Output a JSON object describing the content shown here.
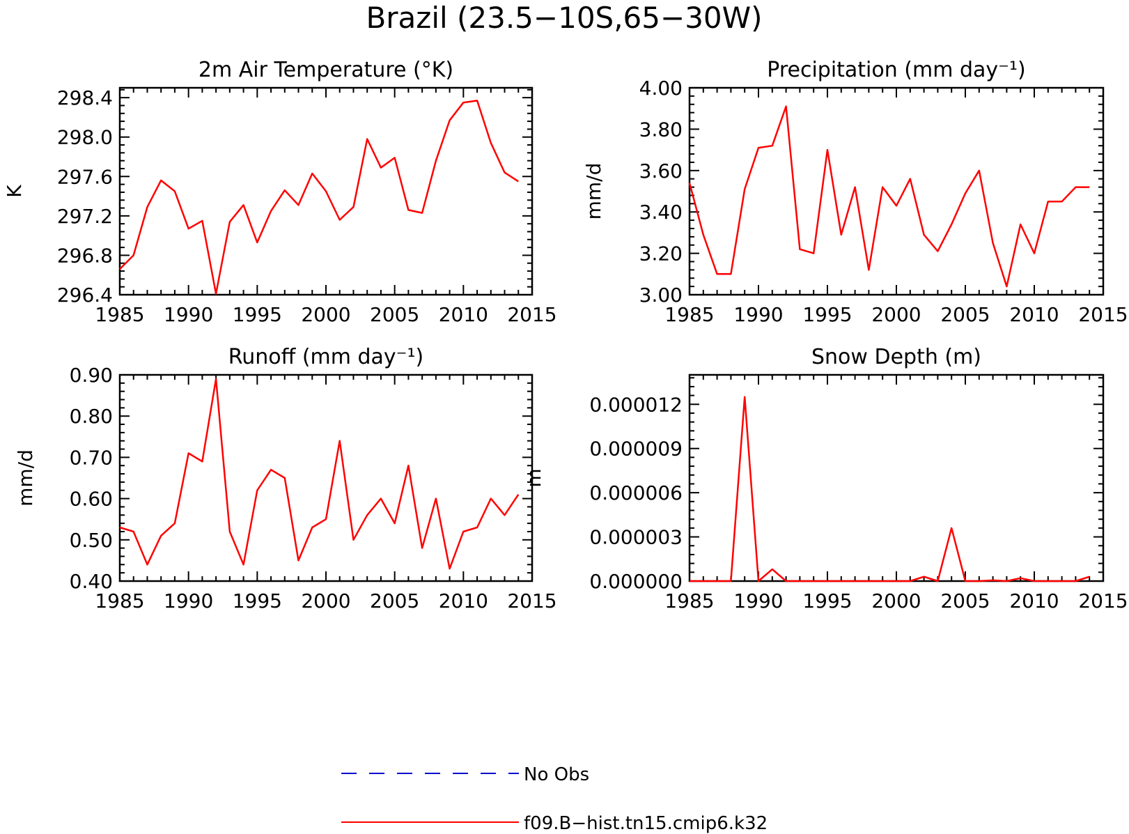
{
  "figure": {
    "title": "Brazil (23.5−10S,65−30W)"
  },
  "legend": {
    "entries": [
      {
        "label": "No Obs",
        "color": "#0000cc",
        "style": "dashed"
      },
      {
        "label": "f09.B−hist.tn15.cmip6.k32",
        "color": "#ff0000",
        "style": "solid"
      }
    ]
  },
  "chart_data": [
    {
      "type": "line",
      "title": "2m Air Temperature (°K)",
      "xlabel": "",
      "ylabel": "K",
      "xlim": [
        1985,
        2015
      ],
      "ylim": [
        296.4,
        298.5
      ],
      "xticks": [
        1985,
        1990,
        1995,
        2000,
        2005,
        2010,
        2015
      ],
      "yticks": [
        296.4,
        296.8,
        297.2,
        297.6,
        298.0,
        298.4
      ],
      "ytick_labels": [
        "296.4",
        "296.8",
        "297.2",
        "297.6",
        "298.0",
        "298.4"
      ],
      "x": [
        1985,
        1986,
        1987,
        1988,
        1989,
        1990,
        1991,
        1992,
        1993,
        1994,
        1995,
        1996,
        1997,
        1998,
        1999,
        2000,
        2001,
        2002,
        2003,
        2004,
        2005,
        2006,
        2007,
        2008,
        2009,
        2010,
        2011,
        2012,
        2013,
        2014
      ],
      "series": [
        {
          "color": "#ff0000",
          "values": [
            296.66,
            296.8,
            297.29,
            297.56,
            297.45,
            297.07,
            297.15,
            296.41,
            297.14,
            297.31,
            296.93,
            297.25,
            297.46,
            297.31,
            297.63,
            297.45,
            297.16,
            297.29,
            297.98,
            297.69,
            297.79,
            297.26,
            297.23,
            297.76,
            298.17,
            298.35,
            298.37,
            297.94,
            297.64,
            297.55
          ]
        }
      ]
    },
    {
      "type": "line",
      "title": "Precipitation (mm day⁻¹)",
      "xlabel": "",
      "ylabel": "mm/d",
      "xlim": [
        1985,
        2015
      ],
      "ylim": [
        3.0,
        4.0
      ],
      "xticks": [
        1985,
        1990,
        1995,
        2000,
        2005,
        2010,
        2015
      ],
      "yticks": [
        3.0,
        3.2,
        3.4,
        3.6,
        3.8,
        4.0
      ],
      "ytick_labels": [
        "3.00",
        "3.20",
        "3.40",
        "3.60",
        "3.80",
        "4.00"
      ],
      "x": [
        1985,
        1986,
        1987,
        1988,
        1989,
        1990,
        1991,
        1992,
        1993,
        1994,
        1995,
        1996,
        1997,
        1998,
        1999,
        2000,
        2001,
        2002,
        2003,
        2004,
        2005,
        2006,
        2007,
        2008,
        2009,
        2010,
        2011,
        2012,
        2013,
        2014
      ],
      "series": [
        {
          "color": "#ff0000",
          "values": [
            3.54,
            3.29,
            3.1,
            3.1,
            3.51,
            3.71,
            3.72,
            3.91,
            3.22,
            3.2,
            3.7,
            3.29,
            3.52,
            3.12,
            3.52,
            3.43,
            3.56,
            3.29,
            3.21,
            3.34,
            3.49,
            3.6,
            3.25,
            3.04,
            3.34,
            3.2,
            3.45,
            3.45,
            3.52,
            3.52
          ]
        }
      ]
    },
    {
      "type": "line",
      "title": "Runoff (mm day⁻¹)",
      "xlabel": "",
      "ylabel": "mm/d",
      "xlim": [
        1985,
        2015
      ],
      "ylim": [
        0.4,
        0.9
      ],
      "xticks": [
        1985,
        1990,
        1995,
        2000,
        2005,
        2010,
        2015
      ],
      "yticks": [
        0.4,
        0.5,
        0.6,
        0.7,
        0.8,
        0.9
      ],
      "ytick_labels": [
        "0.40",
        "0.50",
        "0.60",
        "0.70",
        "0.80",
        "0.90"
      ],
      "x": [
        1985,
        1986,
        1987,
        1988,
        1989,
        1990,
        1991,
        1992,
        1993,
        1994,
        1995,
        1996,
        1997,
        1998,
        1999,
        2000,
        2001,
        2002,
        2003,
        2004,
        2005,
        2006,
        2007,
        2008,
        2009,
        2010,
        2011,
        2012,
        2013,
        2014
      ],
      "series": [
        {
          "color": "#ff0000",
          "values": [
            0.53,
            0.52,
            0.44,
            0.51,
            0.54,
            0.71,
            0.69,
            0.89,
            0.52,
            0.44,
            0.62,
            0.67,
            0.65,
            0.45,
            0.53,
            0.55,
            0.74,
            0.5,
            0.56,
            0.6,
            0.54,
            0.68,
            0.48,
            0.6,
            0.43,
            0.52,
            0.53,
            0.6,
            0.56,
            0.61
          ]
        }
      ]
    },
    {
      "type": "line",
      "title": "Snow Depth (m)",
      "xlabel": "",
      "ylabel": "m",
      "xlim": [
        1985,
        2015
      ],
      "ylim": [
        0.0,
        1.4e-05
      ],
      "xticks": [
        1985,
        1990,
        1995,
        2000,
        2005,
        2010,
        2015
      ],
      "yticks": [
        0.0,
        3e-06,
        6e-06,
        9e-06,
        1.2e-05
      ],
      "ytick_labels": [
        "0.000000",
        "0.000003",
        "0.000006",
        "0.000009",
        "0.000012"
      ],
      "x": [
        1985,
        1986,
        1987,
        1988,
        1989,
        1990,
        1991,
        1992,
        1993,
        1994,
        1995,
        1996,
        1997,
        1998,
        1999,
        2000,
        2001,
        2002,
        2003,
        2004,
        2005,
        2006,
        2007,
        2008,
        2009,
        2010,
        2011,
        2012,
        2013,
        2014
      ],
      "series": [
        {
          "color": "#ff0000",
          "values": [
            0,
            0,
            0,
            0,
            1.25e-05,
            0,
            8e-07,
            0,
            0,
            0,
            0,
            0,
            0,
            0,
            0,
            0,
            0,
            3e-07,
            0,
            3.6e-06,
            0,
            0,
            5e-08,
            0,
            2e-07,
            0,
            0,
            0,
            0,
            3e-07
          ]
        }
      ]
    }
  ]
}
